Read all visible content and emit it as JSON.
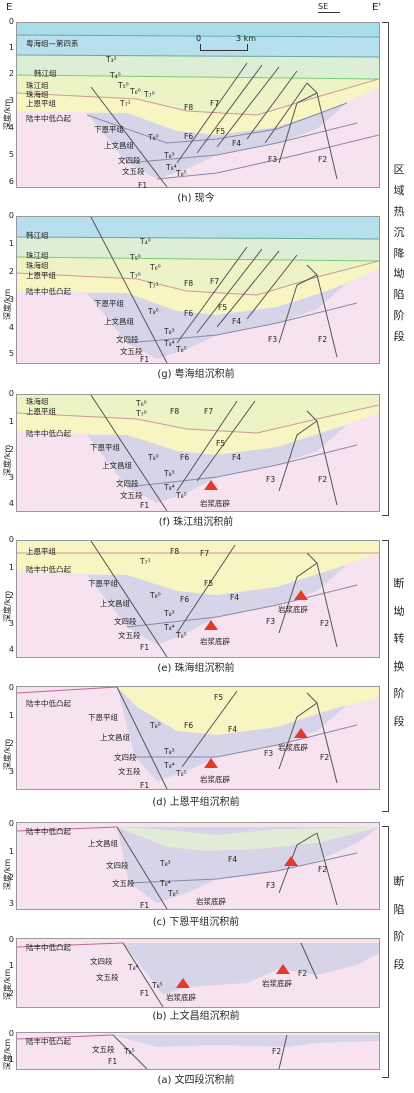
{
  "header": {
    "left": "E",
    "right": "E'",
    "orient": "SE",
    "scale": "3 km",
    "scale_zero": "0"
  },
  "ylabel": "深度/km",
  "colors": {
    "sea": "#a8dce9",
    "hanjiang": "#c6e4ef",
    "zhujiang": "#dcefd6",
    "zhuhai": "#eef3c6",
    "enping": "#f7f5c2",
    "basement": "#f7e3ef",
    "wenchang": "#d7d4ea",
    "fault": "#555",
    "arrow": "#e53a2a"
  },
  "stages": {
    "s1": [
      "区",
      "域",
      "热",
      "沉",
      "降",
      "坳",
      "陷",
      "阶",
      "段"
    ],
    "s2": [
      "断",
      "坳",
      "转",
      "换",
      "阶",
      "段"
    ],
    "s3": [
      "断",
      "陷",
      "阶",
      "段"
    ]
  },
  "panels": [
    {
      "id": "h",
      "caption": "(h) 现今",
      "ticks": [
        "0",
        "1",
        "2",
        "3",
        "4",
        "5",
        "6"
      ],
      "labels": [
        "粤海组—第四系",
        "韩江组",
        "珠江组",
        "珠海组",
        "上恩平组",
        "陆丰中低凸起",
        "下恩平组",
        "上文昌组",
        "文四段",
        "文五段",
        "T₃²",
        "T₄⁰",
        "T₅⁰",
        "T₆⁰",
        "T₇⁰",
        "T₇¹",
        "T₈⁰",
        "T₈³",
        "T₈⁴",
        "T₈⁵",
        "F8",
        "F7",
        "F6",
        "F5",
        "F4",
        "F3",
        "F2",
        "F1"
      ]
    },
    {
      "id": "g",
      "caption": "(g) 粤海组沉积前",
      "ticks": [
        "0",
        "1",
        "2",
        "3",
        "4",
        "5"
      ],
      "labels": [
        "韩江组",
        "珠江组",
        "珠海组",
        "上恩平组",
        "陆丰中低凸起",
        "下恩平组",
        "上文昌组",
        "文四段",
        "文五段",
        "T₄⁰",
        "T₅⁰",
        "T₆⁰",
        "T₇⁰",
        "T₇¹",
        "T₈⁰",
        "T₈³",
        "T₈⁴",
        "T₈⁵",
        "F8",
        "F7",
        "F6",
        "F5",
        "F4",
        "F3",
        "F2",
        "F1"
      ]
    },
    {
      "id": "f",
      "caption": "(f) 珠江组沉积前",
      "ticks": [
        "0",
        "1",
        "2",
        "3",
        "4"
      ],
      "labels": [
        "珠海组",
        "上恩平组",
        "陆丰中低凸起",
        "下恩平组",
        "上文昌组",
        "文四段",
        "文五段",
        "岩浆底辟",
        "T₆⁰",
        "T₇⁰",
        "T₈⁰",
        "T₈³",
        "T₈⁴",
        "T₈⁵",
        "F8",
        "F7",
        "F6",
        "F5",
        "F4",
        "F3",
        "F2",
        "F1"
      ]
    },
    {
      "id": "e",
      "caption": "(e) 珠海组沉积前",
      "ticks": [
        "0",
        "1",
        "2",
        "3",
        "4"
      ],
      "labels": [
        "上恩平组",
        "陆丰中低凸起",
        "下恩平组",
        "上文昌组",
        "文四段",
        "文五段",
        "岩浆底辟",
        "岩浆底辟",
        "T₇¹",
        "T₈⁰",
        "T₈³",
        "T₈⁴",
        "T₈⁵",
        "F8",
        "F7",
        "F6",
        "F5",
        "F4",
        "F3",
        "F2",
        "F1"
      ]
    },
    {
      "id": "d",
      "caption": "(d) 上恩平组沉积前",
      "ticks": [
        "0",
        "1",
        "2",
        "3"
      ],
      "labels": [
        "陆丰中低凸起",
        "下恩平组",
        "上文昌组",
        "文四段",
        "文五段",
        "岩浆底辟",
        "岩浆底辟",
        "T₈⁰",
        "T₈³",
        "T₈⁴",
        "T₈⁵",
        "F6",
        "F5",
        "F4",
        "F3",
        "F2",
        "F1"
      ]
    },
    {
      "id": "c",
      "caption": "(c) 下恩平组沉积前",
      "ticks": [
        "0",
        "1",
        "2",
        "3"
      ],
      "labels": [
        "陆丰中低凸起",
        "上文昌组",
        "文四段",
        "文五段",
        "岩浆底辟",
        "T₈³",
        "T₈⁴",
        "T₈⁵",
        "F4",
        "F3",
        "F2",
        "F1"
      ]
    },
    {
      "id": "b",
      "caption": "(b) 上文昌组沉积前",
      "ticks": [
        "0",
        "1",
        "2"
      ],
      "labels": [
        "陆丰中低凸起",
        "文四段",
        "文五段",
        "岩浆底辟",
        "岩浆底辟",
        "T₈⁴",
        "T₈⁵",
        "F2",
        "F1"
      ]
    },
    {
      "id": "a",
      "caption": "(a) 文四段沉积前",
      "ticks": [
        "0",
        "1"
      ],
      "labels": [
        "陆丰中低凸起",
        "文五段",
        "T₈⁵",
        "F2",
        "F1"
      ]
    }
  ]
}
